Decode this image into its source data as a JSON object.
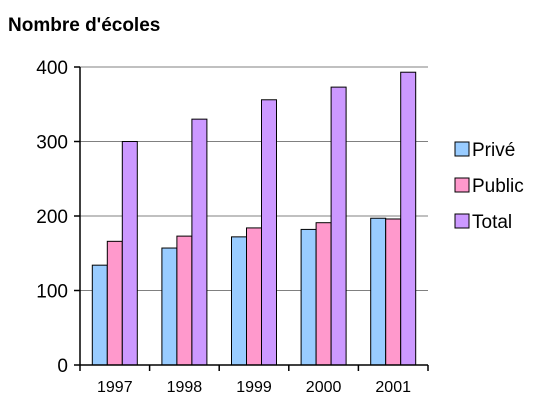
{
  "chart_data": {
    "type": "bar",
    "title": "Nombre d'écoles",
    "xlabel": "",
    "ylabel": "",
    "categories": [
      "1997",
      "1998",
      "1999",
      "2000",
      "2001"
    ],
    "series": [
      {
        "name": "Privé",
        "values": [
          134,
          157,
          172,
          182,
          197
        ],
        "color": "#99ccff"
      },
      {
        "name": "Public",
        "values": [
          166,
          173,
          184,
          191,
          196
        ],
        "color": "#ff99cc"
      },
      {
        "name": "Total",
        "values": [
          300,
          330,
          356,
          373,
          393
        ],
        "color": "#cc99ff"
      }
    ],
    "ylim": [
      0,
      400
    ],
    "yticks": [
      "0",
      "100",
      "200",
      "300",
      "400"
    ],
    "grid": true,
    "legend_position": "right"
  }
}
